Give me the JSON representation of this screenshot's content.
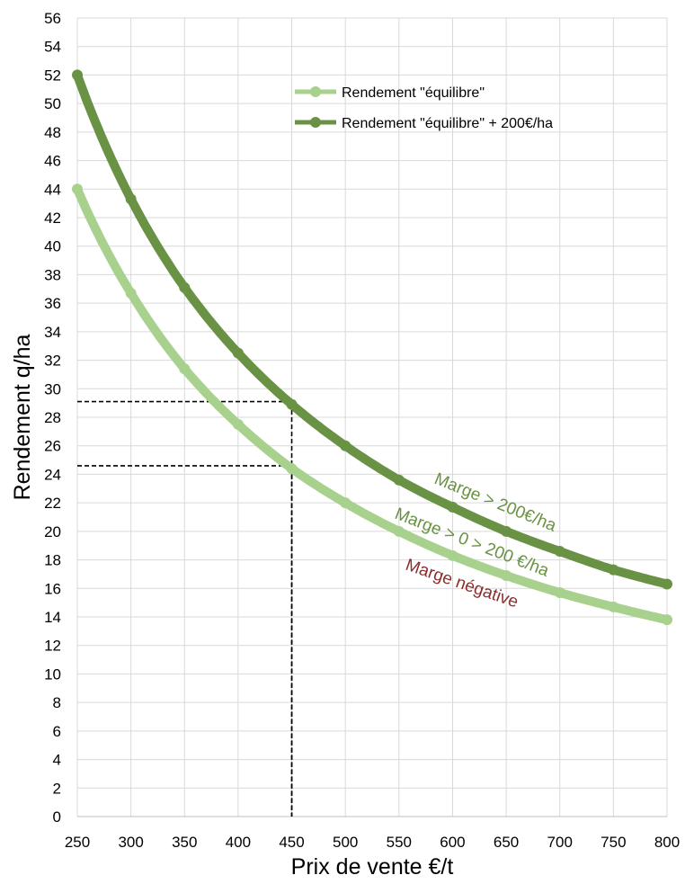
{
  "chart_data": {
    "type": "line",
    "title": "",
    "xlabel": "Prix de vente €/t",
    "ylabel": "Rendement q/ha",
    "xlim": [
      250,
      800
    ],
    "ylim": [
      0,
      56
    ],
    "x_ticks": [
      250,
      300,
      350,
      400,
      450,
      500,
      550,
      600,
      650,
      700,
      750,
      800
    ],
    "y_ticks": [
      0,
      2,
      4,
      6,
      8,
      10,
      12,
      14,
      16,
      18,
      20,
      22,
      24,
      26,
      28,
      30,
      32,
      34,
      36,
      38,
      40,
      42,
      44,
      46,
      48,
      50,
      52,
      54,
      56
    ],
    "grid": true,
    "legend_position": "top-right",
    "x": [
      250,
      300,
      350,
      400,
      450,
      500,
      550,
      600,
      650,
      700,
      750,
      800
    ],
    "series": [
      {
        "name": "Rendement \"équilibre\"",
        "color": "#a9d18e",
        "values": [
          44,
          36.7,
          31.4,
          27.5,
          24.4,
          22.0,
          20.0,
          18.3,
          16.9,
          15.7,
          14.7,
          13.8
        ]
      },
      {
        "name": "Rendement \"équilibre\" + 200€/ha",
        "color": "#6a9244",
        "values": [
          52,
          43.3,
          37.1,
          32.5,
          28.9,
          26.0,
          23.6,
          21.7,
          20.0,
          18.6,
          17.3,
          16.3
        ]
      }
    ],
    "reference_lines": [
      {
        "x": 450,
        "y": 29.1
      },
      {
        "x": 450,
        "y": 24.6
      }
    ],
    "annotations": [
      {
        "text": "Marge > 200€/ha",
        "color": "#6a9244"
      },
      {
        "text": "Marge > 0 > 200 €/ha",
        "color": "#6a9244"
      },
      {
        "text": "Marge négative",
        "color": "#8b2d2d"
      }
    ]
  }
}
